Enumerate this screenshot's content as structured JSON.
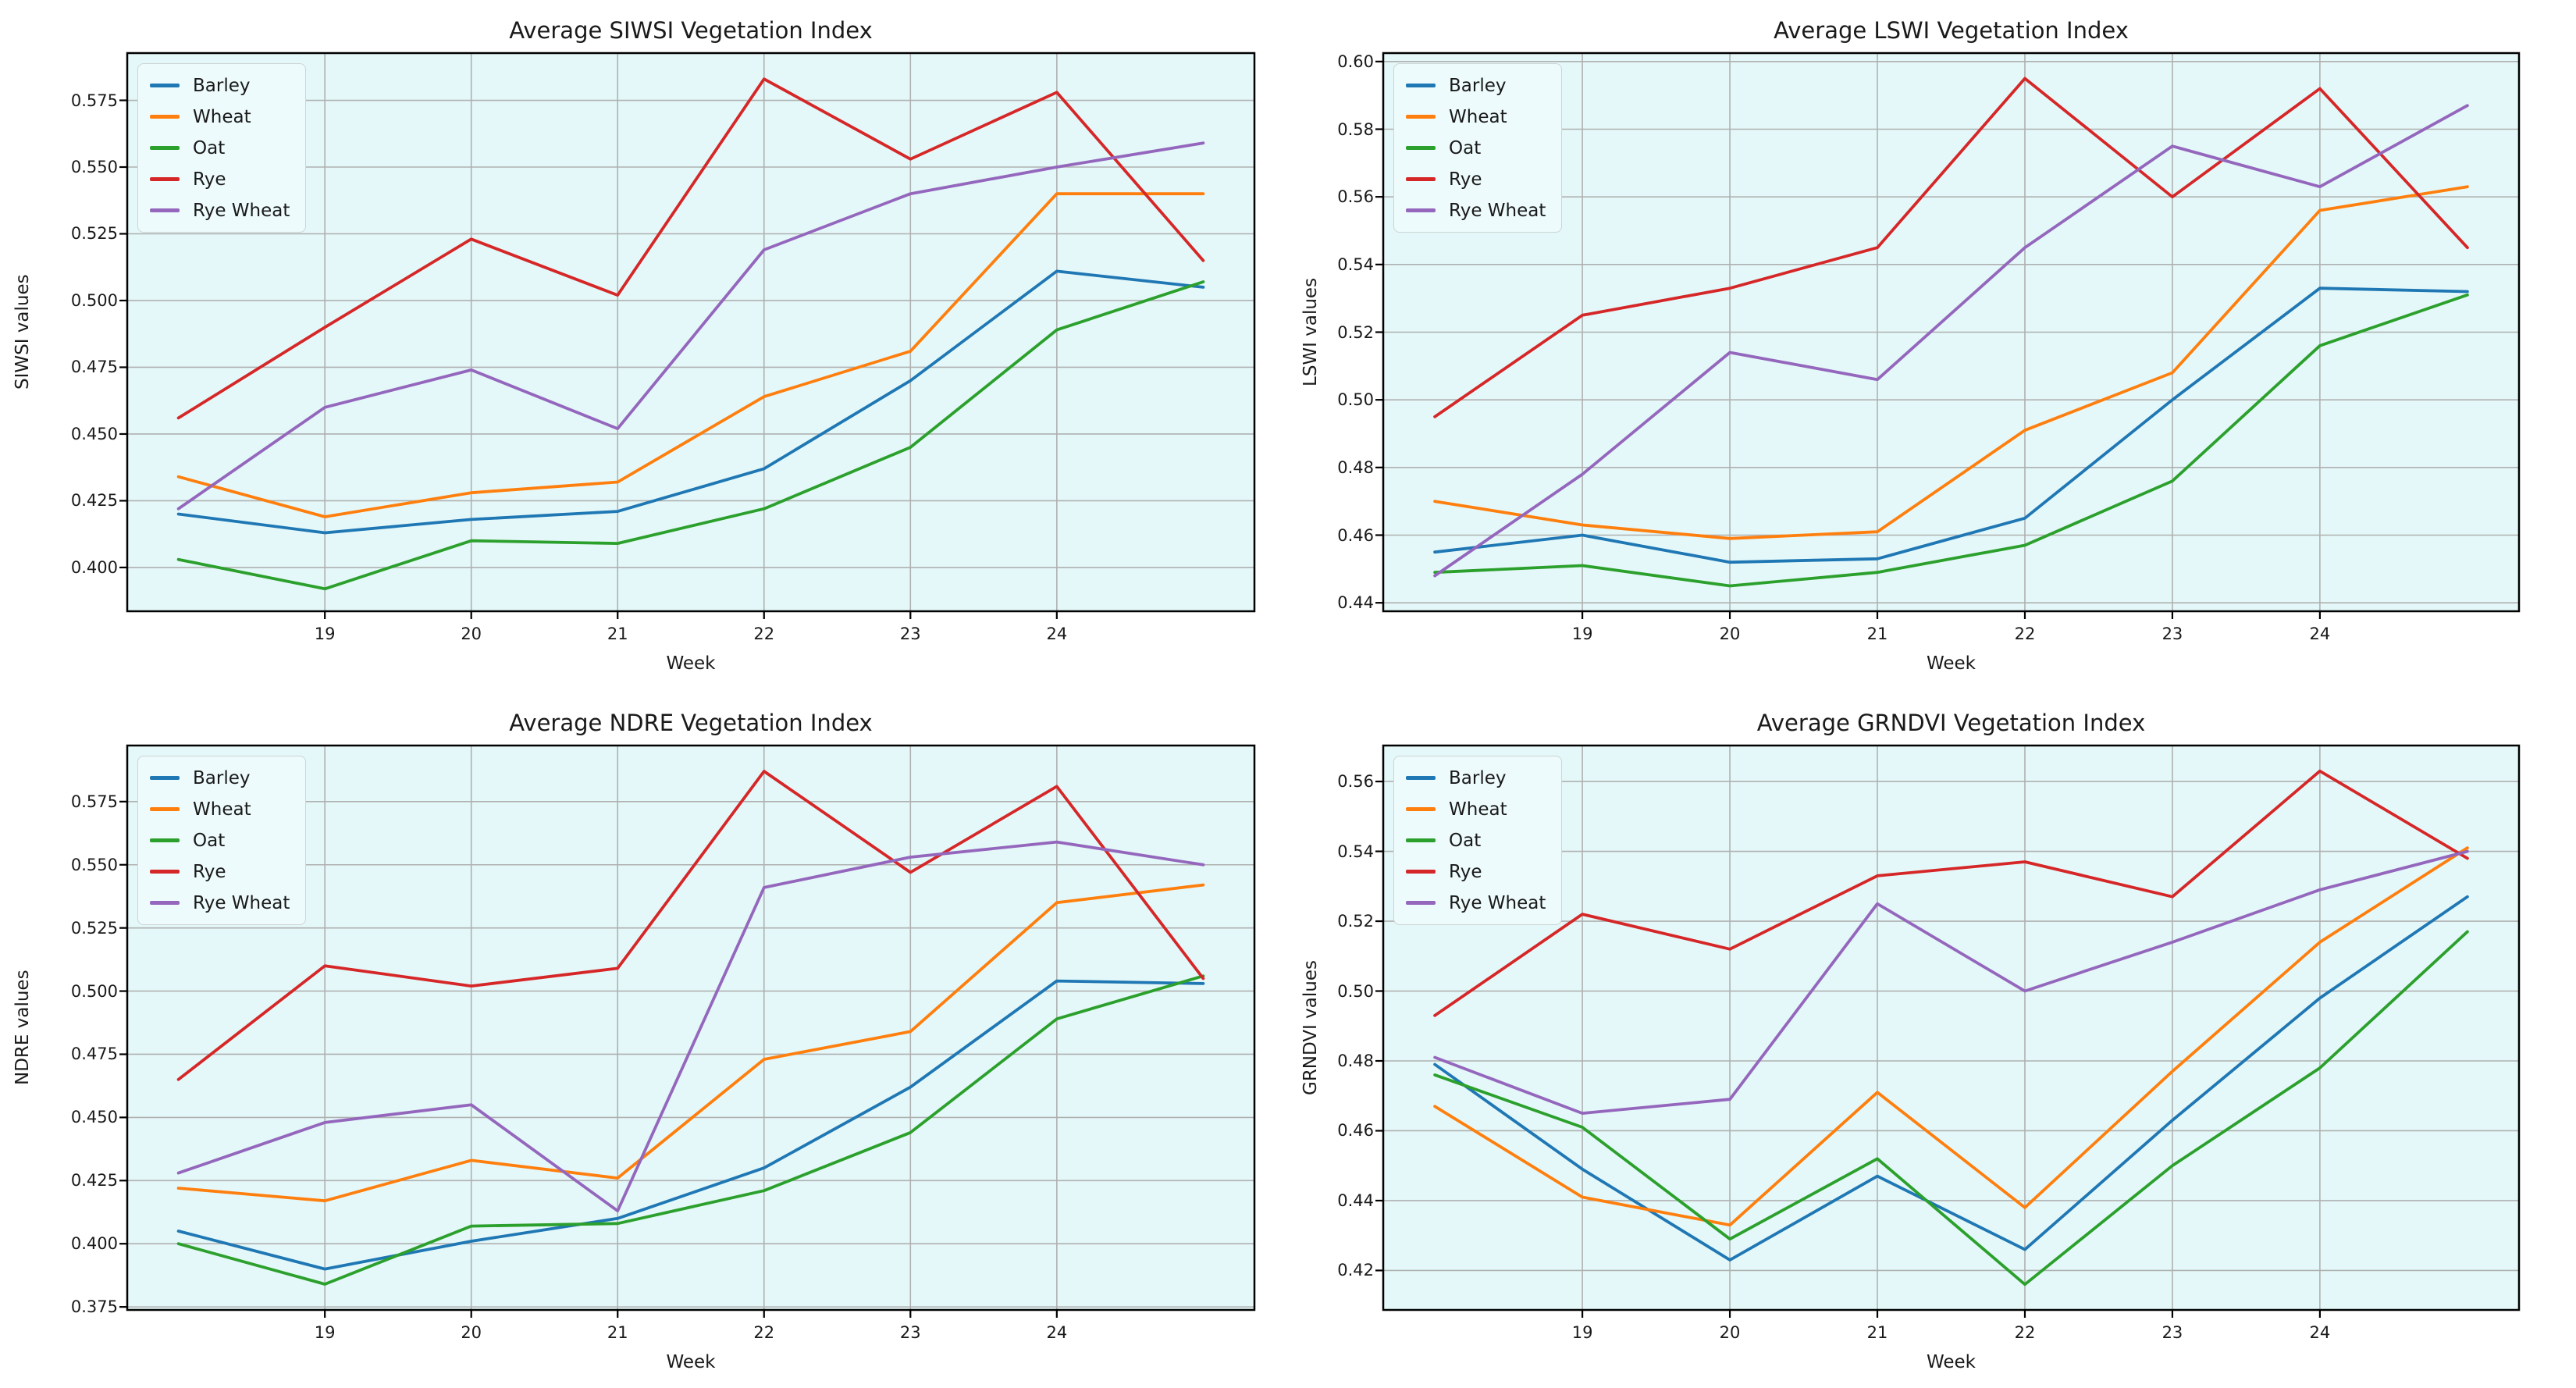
{
  "style": {
    "figure_bg": "#ffffff",
    "plot_bg": "#e4f8f9",
    "grid_color": "#b0b0b0",
    "spine_color": "#000000",
    "text_color": "#1a1a1a",
    "legend_bg": "#eefbfc",
    "legend_border": "#cdd4d4"
  },
  "chart_data": [
    {
      "type": "line",
      "title": "Average SIWSI Vegetation Index",
      "xlabel": "Week",
      "ylabel": "SIWSI values",
      "grid": true,
      "legend_position": "upper-left",
      "legend_entries": [
        "Barley",
        "Wheat",
        "Oat",
        "Rye",
        "Rye Wheat"
      ],
      "x": [
        18,
        19,
        20,
        21,
        22,
        23,
        24,
        25
      ],
      "xlim": [
        17.65,
        25.35
      ],
      "xtick_values": [
        19,
        20,
        21,
        22,
        23,
        24
      ],
      "xtick_labels": [
        "19",
        "20",
        "21",
        "22",
        "23",
        "24"
      ],
      "ylim": [
        0.3836,
        0.5927
      ],
      "ytick_values": [
        0.4,
        0.425,
        0.45,
        0.475,
        0.5,
        0.525,
        0.55,
        0.575
      ],
      "ytick_labels": [
        "0.400",
        "0.425",
        "0.450",
        "0.475",
        "0.500",
        "0.525",
        "0.550",
        "0.575"
      ],
      "series": [
        {
          "name": "Barley",
          "color": "#1f77b4",
          "values": [
            0.42,
            0.413,
            0.418,
            0.421,
            0.437,
            0.47,
            0.511,
            0.505
          ]
        },
        {
          "name": "Wheat",
          "color": "#ff7f0e",
          "values": [
            0.434,
            0.419,
            0.428,
            0.432,
            0.464,
            0.481,
            0.54,
            0.54
          ]
        },
        {
          "name": "Oat",
          "color": "#2ca02c",
          "values": [
            0.403,
            0.392,
            0.41,
            0.409,
            0.422,
            0.445,
            0.489,
            0.507
          ]
        },
        {
          "name": "Rye",
          "color": "#d62728",
          "values": [
            0.456,
            0.49,
            0.523,
            0.502,
            0.583,
            0.553,
            0.578,
            0.515
          ]
        },
        {
          "name": "Rye Wheat",
          "color": "#9467bd",
          "values": [
            0.422,
            0.46,
            0.474,
            0.452,
            0.519,
            0.54,
            0.55,
            0.559
          ]
        }
      ]
    },
    {
      "type": "line",
      "title": "Average LSWI Vegetation Index",
      "xlabel": "Week",
      "ylabel": "LSWI values",
      "grid": true,
      "legend_position": "upper-left",
      "legend_entries": [
        "Barley",
        "Wheat",
        "Oat",
        "Rye",
        "Rye Wheat"
      ],
      "x": [
        18,
        19,
        20,
        21,
        22,
        23,
        24,
        25
      ],
      "xlim": [
        17.65,
        25.35
      ],
      "xtick_values": [
        19,
        20,
        21,
        22,
        23,
        24
      ],
      "xtick_labels": [
        "19",
        "20",
        "21",
        "22",
        "23",
        "24"
      ],
      "ylim": [
        0.4375,
        0.6025
      ],
      "ytick_values": [
        0.44,
        0.46,
        0.48,
        0.5,
        0.52,
        0.54,
        0.56,
        0.58,
        0.6
      ],
      "ytick_labels": [
        "0.44",
        "0.46",
        "0.48",
        "0.50",
        "0.52",
        "0.54",
        "0.56",
        "0.58",
        "0.60"
      ],
      "series": [
        {
          "name": "Barley",
          "color": "#1f77b4",
          "values": [
            0.455,
            0.46,
            0.452,
            0.453,
            0.465,
            0.5,
            0.533,
            0.532
          ]
        },
        {
          "name": "Wheat",
          "color": "#ff7f0e",
          "values": [
            0.47,
            0.463,
            0.459,
            0.461,
            0.491,
            0.508,
            0.556,
            0.563
          ]
        },
        {
          "name": "Oat",
          "color": "#2ca02c",
          "values": [
            0.449,
            0.451,
            0.445,
            0.449,
            0.457,
            0.476,
            0.516,
            0.531
          ]
        },
        {
          "name": "Rye",
          "color": "#d62728",
          "values": [
            0.495,
            0.525,
            0.533,
            0.545,
            0.595,
            0.56,
            0.592,
            0.545
          ]
        },
        {
          "name": "Rye Wheat",
          "color": "#9467bd",
          "values": [
            0.448,
            0.478,
            0.514,
            0.506,
            0.545,
            0.575,
            0.563,
            0.587
          ]
        }
      ]
    },
    {
      "type": "line",
      "title": "Average NDRE Vegetation Index",
      "xlabel": "Week",
      "ylabel": "NDRE values",
      "grid": true,
      "legend_position": "upper-left",
      "legend_entries": [
        "Barley",
        "Wheat",
        "Oat",
        "Rye",
        "Rye Wheat"
      ],
      "x": [
        18,
        19,
        20,
        21,
        22,
        23,
        24,
        25
      ],
      "xlim": [
        17.65,
        25.35
      ],
      "xtick_values": [
        19,
        20,
        21,
        22,
        23,
        24
      ],
      "xtick_labels": [
        "19",
        "20",
        "21",
        "22",
        "23",
        "24"
      ],
      "ylim": [
        0.3738,
        0.5972
      ],
      "ytick_values": [
        0.375,
        0.4,
        0.425,
        0.45,
        0.475,
        0.5,
        0.525,
        0.55,
        0.575
      ],
      "ytick_labels": [
        "0.375",
        "0.400",
        "0.425",
        "0.450",
        "0.475",
        "0.500",
        "0.525",
        "0.550",
        "0.575"
      ],
      "series": [
        {
          "name": "Barley",
          "color": "#1f77b4",
          "values": [
            0.405,
            0.39,
            0.401,
            0.41,
            0.43,
            0.462,
            0.504,
            0.503
          ]
        },
        {
          "name": "Wheat",
          "color": "#ff7f0e",
          "values": [
            0.422,
            0.417,
            0.433,
            0.426,
            0.473,
            0.484,
            0.535,
            0.542
          ]
        },
        {
          "name": "Oat",
          "color": "#2ca02c",
          "values": [
            0.4,
            0.384,
            0.407,
            0.408,
            0.421,
            0.444,
            0.489,
            0.506
          ]
        },
        {
          "name": "Rye",
          "color": "#d62728",
          "values": [
            0.465,
            0.51,
            0.502,
            0.509,
            0.587,
            0.547,
            0.581,
            0.505
          ]
        },
        {
          "name": "Rye Wheat",
          "color": "#9467bd",
          "values": [
            0.428,
            0.448,
            0.455,
            0.413,
            0.541,
            0.553,
            0.559,
            0.55
          ]
        }
      ]
    },
    {
      "type": "line",
      "title": "Average GRNDVI Vegetation Index",
      "xlabel": "Week",
      "ylabel": "GRNDVI values",
      "grid": true,
      "legend_position": "upper-left",
      "legend_entries": [
        "Barley",
        "Wheat",
        "Oat",
        "Rye",
        "Rye Wheat"
      ],
      "x": [
        18,
        19,
        20,
        21,
        22,
        23,
        24,
        25
      ],
      "xlim": [
        17.65,
        25.35
      ],
      "xtick_values": [
        19,
        20,
        21,
        22,
        23,
        24
      ],
      "xtick_labels": [
        "19",
        "20",
        "21",
        "22",
        "23",
        "24"
      ],
      "ylim": [
        0.4087,
        0.5703
      ],
      "ytick_values": [
        0.42,
        0.44,
        0.46,
        0.48,
        0.5,
        0.52,
        0.54,
        0.56
      ],
      "ytick_labels": [
        "0.42",
        "0.44",
        "0.46",
        "0.48",
        "0.50",
        "0.52",
        "0.54",
        "0.56"
      ],
      "series": [
        {
          "name": "Barley",
          "color": "#1f77b4",
          "values": [
            0.479,
            0.449,
            0.423,
            0.447,
            0.426,
            0.463,
            0.498,
            0.527
          ]
        },
        {
          "name": "Wheat",
          "color": "#ff7f0e",
          "values": [
            0.467,
            0.441,
            0.433,
            0.471,
            0.438,
            0.477,
            0.514,
            0.541
          ]
        },
        {
          "name": "Oat",
          "color": "#2ca02c",
          "values": [
            0.476,
            0.461,
            0.429,
            0.452,
            0.416,
            0.45,
            0.478,
            0.517
          ]
        },
        {
          "name": "Rye",
          "color": "#d62728",
          "values": [
            0.493,
            0.522,
            0.512,
            0.533,
            0.537,
            0.527,
            0.563,
            0.538
          ]
        },
        {
          "name": "Rye Wheat",
          "color": "#9467bd",
          "values": [
            0.481,
            0.465,
            0.469,
            0.525,
            0.5,
            0.514,
            0.529,
            0.54
          ]
        }
      ]
    }
  ]
}
